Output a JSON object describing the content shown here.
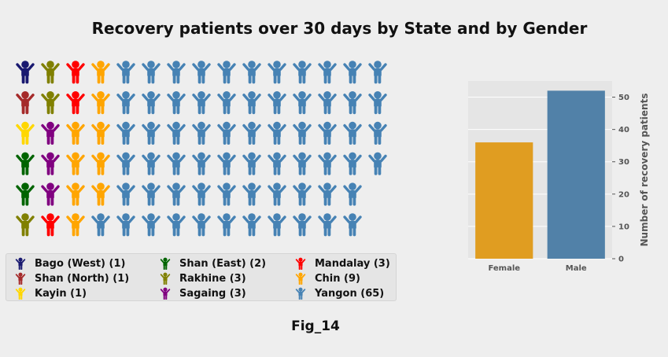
{
  "title": "Recovery patients over 30 days by State and by Gender",
  "caption": "Fig_14",
  "icon_name": "person-arms-raised-icon",
  "waffle": {
    "rows": 6,
    "cols": 15,
    "states": [
      {
        "label": "Bago (West) (1)",
        "count": 1,
        "color": "#191970"
      },
      {
        "label": "Shan (North) (1)",
        "count": 1,
        "color": "#a52a2a"
      },
      {
        "label": "Kayin (1)",
        "count": 1,
        "color": "#ffd700"
      },
      {
        "label": "Shan (East) (2)",
        "count": 2,
        "color": "#006400"
      },
      {
        "label": "Rakhine (3)",
        "count": 3,
        "color": "#808000"
      },
      {
        "label": "Sagaing (3)",
        "count": 3,
        "color": "#800080"
      },
      {
        "label": "Mandalay (3)",
        "count": 3,
        "color": "#ff0000"
      },
      {
        "label": "Chin (9)",
        "count": 9,
        "color": "#ffa500"
      },
      {
        "label": "Yangon (65)",
        "count": 65,
        "color": "#4682b4"
      }
    ]
  },
  "chart_data": {
    "type": "bar",
    "categories": [
      "Female",
      "Male"
    ],
    "values": [
      36,
      52
    ],
    "colors": [
      "#e09d21",
      "#5181a8"
    ],
    "ylabel": "Number of recovery patients",
    "ylim": [
      0,
      55
    ],
    "yticks": [
      0,
      10,
      20,
      30,
      40,
      50
    ],
    "grid": true,
    "y_axis_side": "right"
  }
}
